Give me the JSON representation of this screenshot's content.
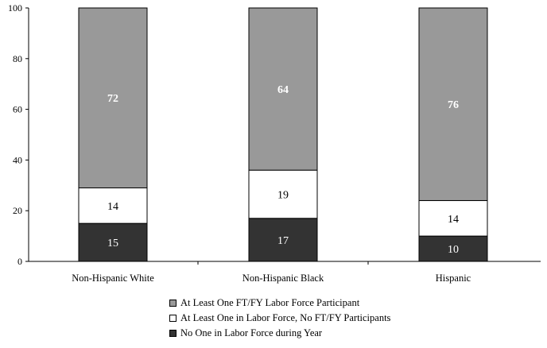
{
  "chart_data": {
    "type": "bar",
    "stacked": true,
    "categories": [
      "Non-Hispanic White",
      "Non-Hispanic Black",
      "Hispanic"
    ],
    "series": [
      {
        "name": "No One in Labor Force during Year",
        "values": [
          15,
          17,
          10
        ],
        "color": "#333333",
        "label_color": "#ffffff"
      },
      {
        "name": "At Least One in Labor Force, No FT/FY Participants",
        "values": [
          14,
          19,
          14
        ],
        "color": "#ffffff",
        "label_color": "#000000"
      },
      {
        "name": "At Least One FT/FY Labor Force Participant",
        "values": [
          72,
          64,
          76
        ],
        "color": "#999999",
        "label_color": "#ffffff"
      }
    ],
    "ylim": [
      0,
      100
    ],
    "yticks": [
      0,
      20,
      40,
      60,
      80,
      100
    ],
    "grid": false,
    "legend_position": "bottom",
    "title": "",
    "xlabel": "",
    "ylabel": ""
  },
  "legend": {
    "items": [
      {
        "label": "At Least One FT/FY Labor Force Participant",
        "color": "#999999"
      },
      {
        "label": "At Least One in Labor Force, No FT/FY Participants",
        "color": "#ffffff"
      },
      {
        "label": "No One in Labor Force during Year",
        "color": "#333333"
      }
    ]
  }
}
